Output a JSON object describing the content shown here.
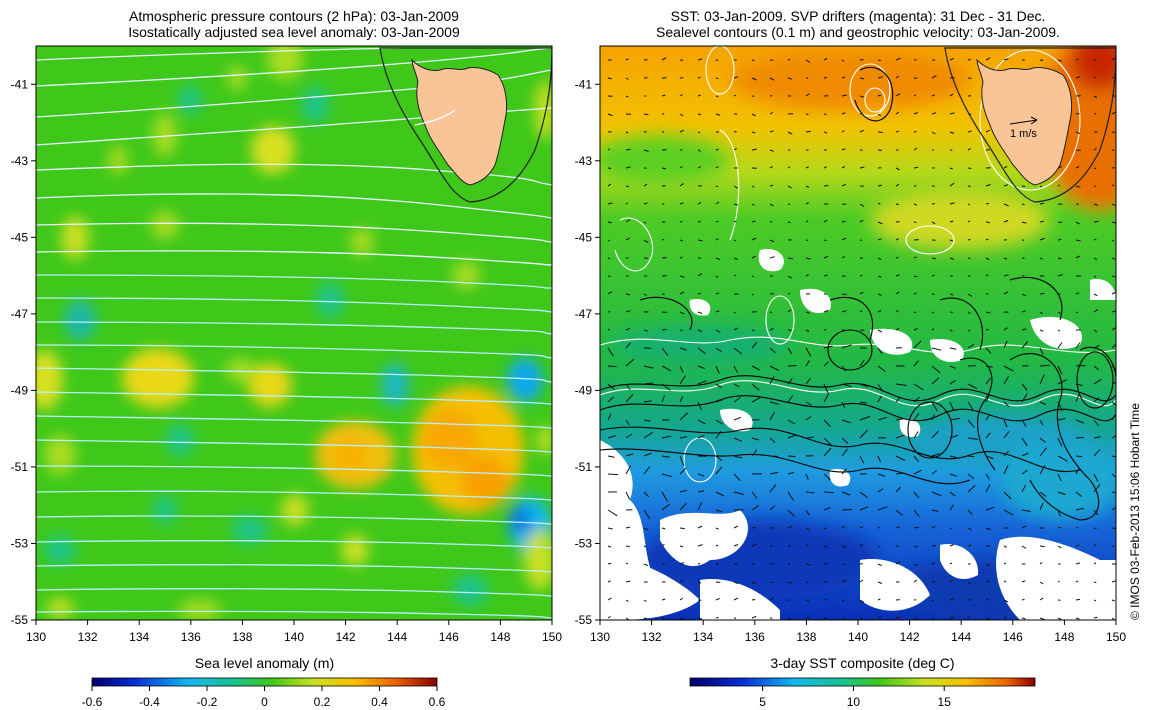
{
  "left_panel": {
    "title_line1": "Atmospheric pressure contours (2 hPa): 03-Jan-2009",
    "title_line2": "Isostatically adjusted sea level anomaly: 03-Jan-2009",
    "x_ticks": [
      "130",
      "132",
      "134",
      "136",
      "138",
      "140",
      "142",
      "144",
      "146",
      "148",
      "150"
    ],
    "y_ticks": [
      "-41",
      "-43",
      "-45",
      "-47",
      "-49",
      "-51",
      "-53",
      "-55"
    ],
    "colorbar_label": "Sea level anomaly (m)",
    "colorbar_ticks": [
      "-0.6",
      "-0.4",
      "-0.2",
      "0",
      "0.2",
      "0.4",
      "0.6"
    ]
  },
  "right_panel": {
    "title_line1": "SST: 03-Jan-2009. SVP drifters (magenta): 31 Dec - 31 Dec.",
    "title_line2": "Sealevel contours (0.1 m) and geostrophic velocity: 03-Jan-2009.",
    "x_ticks": [
      "130",
      "132",
      "134",
      "136",
      "138",
      "140",
      "142",
      "144",
      "146",
      "148",
      "150"
    ],
    "y_ticks": [
      "-41",
      "-43",
      "-45",
      "-47",
      "-49",
      "-51",
      "-53",
      "-55"
    ],
    "scale_label": "1 m/s",
    "colorbar_label": "3-day SST composite (deg C)",
    "colorbar_ticks": [
      "5",
      "10",
      "15"
    ]
  },
  "credit": "© IMOS 03-Feb-2013 15:06 Hobart Time",
  "map_extent": {
    "lon": [
      130,
      150
    ],
    "lat": [
      -55,
      -40
    ]
  },
  "colors": {
    "land": "#f9c596",
    "sla_background": "#3fc81a",
    "sst_warm": "#f4b000",
    "sst_mid": "#2bbd33",
    "sst_cold": "#0a2fc8",
    "pressure_contours": "#e6f4ff"
  }
}
